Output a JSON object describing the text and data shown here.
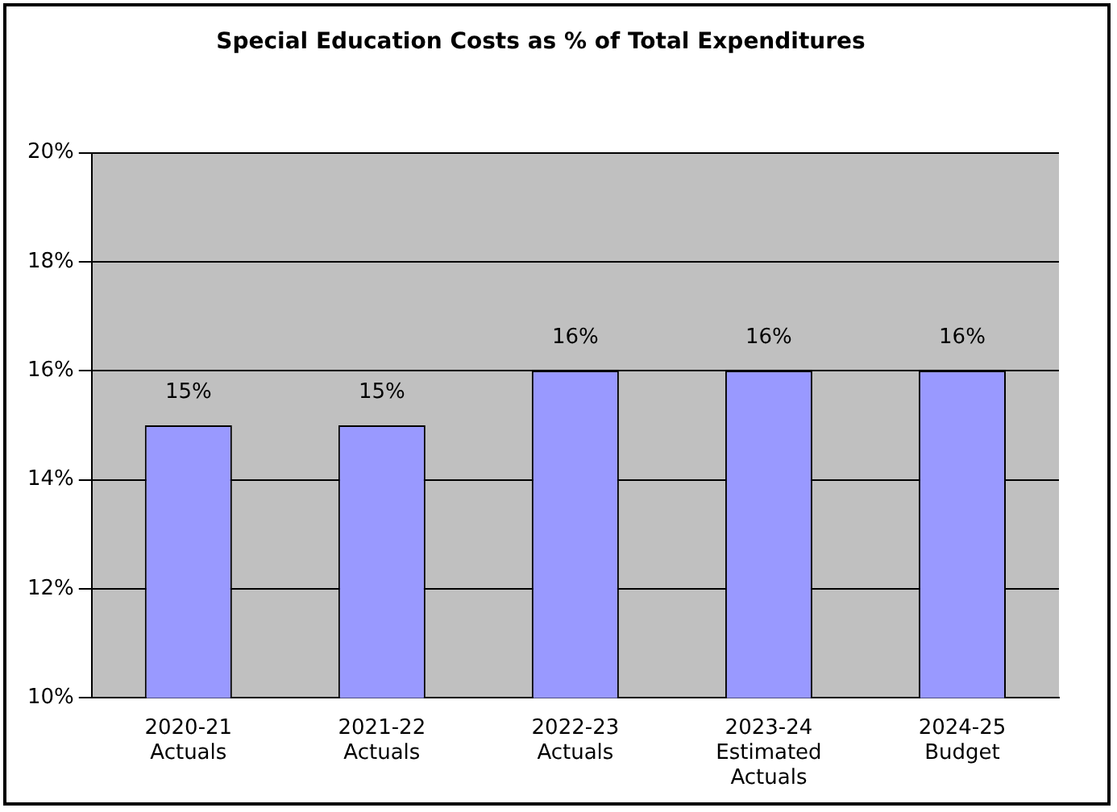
{
  "chart_data": {
    "type": "bar",
    "title": "Special Education Costs as % of Total Expenditures",
    "categories": [
      "2020-21 Actuals",
      "2021-22 Actuals",
      "2022-23 Actuals",
      "2023-24 Estimated Actuals",
      "2024-25 Budget"
    ],
    "values": [
      15,
      15,
      16,
      16,
      16
    ],
    "value_labels": [
      "15%",
      "15%",
      "16%",
      "16%",
      "16%"
    ],
    "color": "#9999ff",
    "ylim": [
      10,
      20
    ],
    "yticks": [
      {
        "value": 10,
        "label": "10%"
      },
      {
        "value": 12,
        "label": "12%"
      },
      {
        "value": 14,
        "label": "14%"
      },
      {
        "value": 16,
        "label": "16%"
      },
      {
        "value": 18,
        "label": "18%"
      },
      {
        "value": 20,
        "label": "20%"
      }
    ],
    "grid": "y",
    "legend": false
  }
}
